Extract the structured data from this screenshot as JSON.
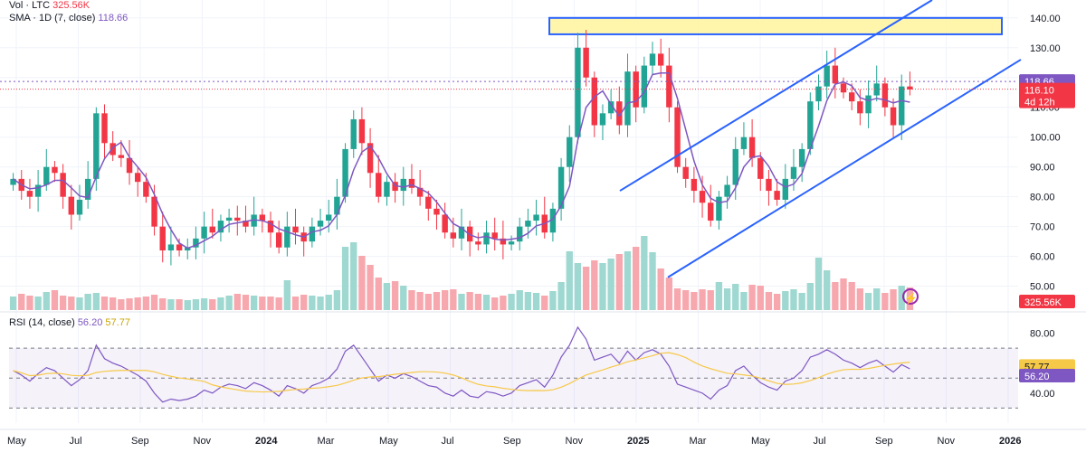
{
  "legend": {
    "vol_label": "Vol · LTC",
    "vol_value": "325.56K",
    "sma_label": "SMA · 1D (7, close)",
    "sma_value": "118.66",
    "rsi_label": "RSI (14, close)",
    "rsi_value": "56.20",
    "rsi_ma_value": "57.77"
  },
  "colors": {
    "up": "#22a495",
    "down": "#f23645",
    "up_volume": "#9ed8d0",
    "down_volume": "#f6a8ae",
    "sma": "#7e57c2",
    "trendline": "#2962ff",
    "rsi": "#7e57c2",
    "rsi_ma": "#f7c948",
    "resistance_zone": "#fff59d"
  },
  "chart_data": {
    "type": "candlestick",
    "symbol": "LTC",
    "price_axis": {
      "ticks": [
        "140.00",
        "130.00",
        "120.00",
        "110.00",
        "100.00",
        "90.00",
        "80.00",
        "70.00",
        "60.00",
        "50.00"
      ],
      "range": [
        42,
        146
      ]
    },
    "time_axis": {
      "labels": [
        "May",
        "Jul",
        "Sep",
        "Nov",
        "2024",
        "Mar",
        "May",
        "Jul",
        "Sep",
        "Nov",
        "2025",
        "Mar",
        "May",
        "Jul",
        "Sep",
        "Nov",
        "2026"
      ],
      "bold_labels": [
        "2024",
        "2025",
        "2026"
      ]
    },
    "price_badges": [
      {
        "value": "118.66",
        "color": "#7e57c2",
        "role": "sma"
      },
      {
        "value": "116.10",
        "sub": "4d 12h",
        "color": "#f23645",
        "role": "last"
      }
    ],
    "volume_badge": "325.56K",
    "weekly_closes": [
      86,
      82,
      80,
      84,
      90,
      88,
      80,
      74,
      79,
      86,
      108,
      98,
      94,
      93,
      88,
      85,
      80,
      70,
      62,
      64,
      62,
      63,
      66,
      70,
      68,
      72,
      73,
      72,
      70,
      74,
      72,
      68,
      63,
      70,
      68,
      65,
      70,
      72,
      74,
      80,
      96,
      106,
      98,
      88,
      80,
      85,
      82,
      86,
      83,
      80,
      76,
      74,
      68,
      66,
      70,
      65,
      64,
      68,
      66,
      64,
      65,
      70,
      72,
      74,
      68,
      76,
      90,
      100,
      130,
      120,
      104,
      108,
      112,
      104,
      122,
      110,
      124,
      128,
      124,
      110,
      90,
      86,
      82,
      78,
      72,
      80,
      84,
      96,
      100,
      93,
      86,
      82,
      79,
      86,
      90,
      96,
      112,
      117,
      124,
      118,
      115,
      112,
      108,
      114,
      118,
      110,
      104,
      117,
      116
    ],
    "volume_levels": [
      0.15,
      0.18,
      0.16,
      0.15,
      0.2,
      0.22,
      0.16,
      0.15,
      0.14,
      0.18,
      0.19,
      0.15,
      0.14,
      0.12,
      0.13,
      0.14,
      0.15,
      0.17,
      0.13,
      0.12,
      0.12,
      0.11,
      0.12,
      0.13,
      0.12,
      0.14,
      0.16,
      0.18,
      0.17,
      0.16,
      0.15,
      0.15,
      0.14,
      0.33,
      0.15,
      0.17,
      0.16,
      0.15,
      0.17,
      0.22,
      0.7,
      0.75,
      0.6,
      0.5,
      0.36,
      0.3,
      0.32,
      0.27,
      0.22,
      0.2,
      0.18,
      0.2,
      0.22,
      0.23,
      0.18,
      0.2,
      0.18,
      0.17,
      0.14,
      0.16,
      0.18,
      0.22,
      0.2,
      0.19,
      0.16,
      0.21,
      0.31,
      0.65,
      0.52,
      0.48,
      0.55,
      0.52,
      0.57,
      0.62,
      0.65,
      0.7,
      0.82,
      0.64,
      0.46,
      0.36,
      0.24,
      0.22,
      0.2,
      0.23,
      0.22,
      0.31,
      0.24,
      0.29,
      0.2,
      0.28,
      0.27,
      0.2,
      0.18,
      0.21,
      0.23,
      0.19,
      0.3,
      0.58,
      0.44,
      0.31,
      0.35,
      0.31,
      0.24,
      0.19,
      0.24,
      0.19,
      0.23,
      0.27,
      0.25
    ],
    "rsi_axis": {
      "ticks": [
        "80.00",
        "40.00"
      ],
      "upper_band": 70,
      "lower_band": 30,
      "mid": 50
    },
    "rsi_values": [
      55,
      52,
      48,
      53,
      57,
      55,
      50,
      45,
      49,
      55,
      72,
      63,
      60,
      58,
      55,
      52,
      48,
      40,
      34,
      36,
      35,
      36,
      38,
      42,
      40,
      44,
      46,
      45,
      43,
      47,
      45,
      42,
      38,
      45,
      43,
      40,
      45,
      47,
      50,
      56,
      68,
      72,
      64,
      56,
      48,
      52,
      50,
      53,
      51,
      48,
      45,
      44,
      40,
      38,
      42,
      38,
      37,
      41,
      40,
      38,
      40,
      45,
      47,
      49,
      44,
      52,
      64,
      72,
      84,
      76,
      62,
      64,
      66,
      60,
      68,
      62,
      67,
      69,
      66,
      58,
      46,
      44,
      42,
      40,
      36,
      42,
      45,
      55,
      58,
      52,
      47,
      44,
      42,
      48,
      50,
      55,
      64,
      66,
      69,
      66,
      62,
      60,
      57,
      60,
      62,
      58,
      54,
      59,
      56.2
    ],
    "rsi_ma_last": 57.77,
    "annotations": [
      {
        "type": "rectangle",
        "label": "resistance zone",
        "y_range": [
          134.5,
          140
        ]
      },
      {
        "type": "line",
        "label": "channel top",
        "points": [
          [
            "2024-11-28",
            82
          ],
          [
            "2025-10-01",
            150
          ]
        ]
      },
      {
        "type": "line",
        "label": "channel bottom",
        "points": [
          [
            "2025-02-28",
            51
          ],
          [
            "2025-11-20",
            130
          ]
        ]
      }
    ]
  }
}
